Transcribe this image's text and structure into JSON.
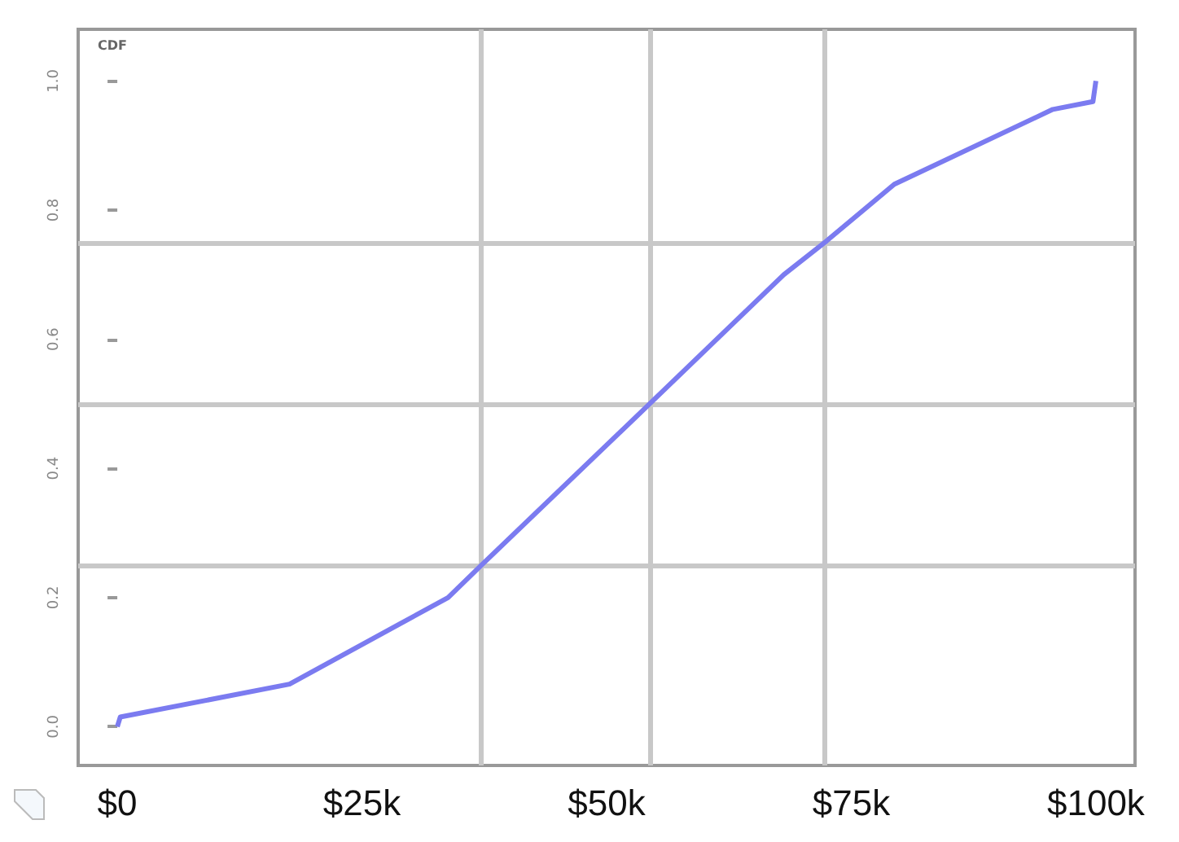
{
  "chart_data": {
    "type": "line",
    "annotations": [
      "CDF"
    ],
    "x": [
      0,
      300,
      17600,
      33800,
      37200,
      54400,
      68100,
      72300,
      79400,
      95600,
      99700,
      100000
    ],
    "series": [
      {
        "color": "#7b7bf0",
        "values": [
          0,
          0.015,
          0.066,
          0.2,
          0.25,
          0.5,
          0.7,
          0.75,
          0.84,
          0.956,
          0.968,
          1.0
        ]
      }
    ],
    "xlim": [
      -4000,
      104000
    ],
    "xticks": [
      {
        "value": 0,
        "label": "$0"
      },
      {
        "value": 25000,
        "label": "$25k"
      },
      {
        "value": 50000,
        "label": "$50k"
      },
      {
        "value": 75000,
        "label": "$75k"
      },
      {
        "value": 100000,
        "label": "$100k"
      }
    ],
    "ylim": [
      -0.06,
      1.08
    ],
    "yticks": [
      {
        "value": 0,
        "label": "0.0"
      },
      {
        "value": 0.2,
        "label": "0.2"
      },
      {
        "value": 0.4,
        "label": "0.4"
      },
      {
        "value": 0.6,
        "label": "0.6"
      },
      {
        "value": 0.8,
        "label": "0.8"
      },
      {
        "value": 1,
        "label": "1.0"
      }
    ],
    "ref_lines": [
      {
        "axis": "y",
        "value": 0.25,
        "color": "#c8c8c8"
      },
      {
        "axis": "y",
        "value": 0.5,
        "color": "#c8c8c8"
      },
      {
        "axis": "y",
        "value": 0.75,
        "color": "#c8c8c8"
      },
      {
        "axis": "x",
        "value": 37200,
        "color": "#c8c8c8"
      },
      {
        "axis": "x",
        "value": 54400,
        "color": "#c8c8c8"
      },
      {
        "axis": "x",
        "value": 72300,
        "color": "#c8c8c8"
      }
    ],
    "marker": "none",
    "line_style": "solid"
  }
}
